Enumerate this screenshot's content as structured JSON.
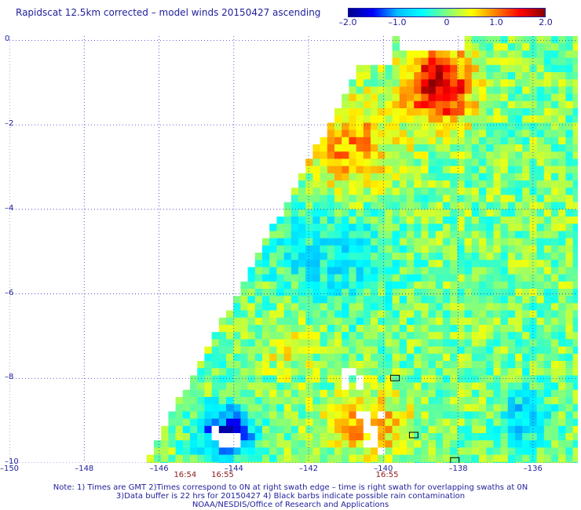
{
  "title": "Rapidscat 12.5km corrected – model winds 20150427 ascending",
  "colorbar": {
    "ticks": [
      "–2.0",
      "–1.0",
      "0",
      "1.0",
      "2.0"
    ],
    "tick_values": [
      -2.0,
      -1.0,
      0,
      1.0,
      2.0
    ],
    "range": [
      -2.0,
      2.0
    ],
    "colors": [
      "#00008b",
      "#0000ff",
      "#00bfff",
      "#00ffff",
      "#7fff7f",
      "#ffff00",
      "#ff7f00",
      "#ff0000",
      "#8b0000"
    ]
  },
  "map": {
    "lon_range": [
      -150,
      -134.8
    ],
    "lat_range": [
      -10,
      0.1
    ],
    "lon_ticks": [
      "–150",
      "–148",
      "–146",
      "–144",
      "–142",
      "–140",
      "–138",
      "–136"
    ],
    "lon_tick_values": [
      -150,
      -148,
      -146,
      -144,
      -142,
      -140,
      -138,
      -136
    ],
    "lat_ticks": [
      "0",
      "–2",
      "–4",
      "–6",
      "–8",
      "–10"
    ],
    "lat_tick_values": [
      0,
      -2,
      -4,
      -6,
      -8,
      -10
    ],
    "grid": true,
    "swath_color_scale": "difference (corrected – model), m/s",
    "land_color": "#000000",
    "missing_color": "#ffffff"
  },
  "time_labels": [
    {
      "text": "16:54",
      "lon": -145.3
    },
    {
      "text": "16:55",
      "lon": -144.3
    },
    {
      "text": "16:55",
      "lon": -139.9
    }
  ],
  "notes": [
    "Note: 1) Times are GMT 2)Times correspond to 0N at right swath edge – time is right swath for overlapping swaths at 0N",
    "3)Data buffer is 22 hrs for 20150427 4) Black barbs indicate possible rain contamination",
    "NOAA/NESDIS/Office of Research and Applications"
  ]
}
